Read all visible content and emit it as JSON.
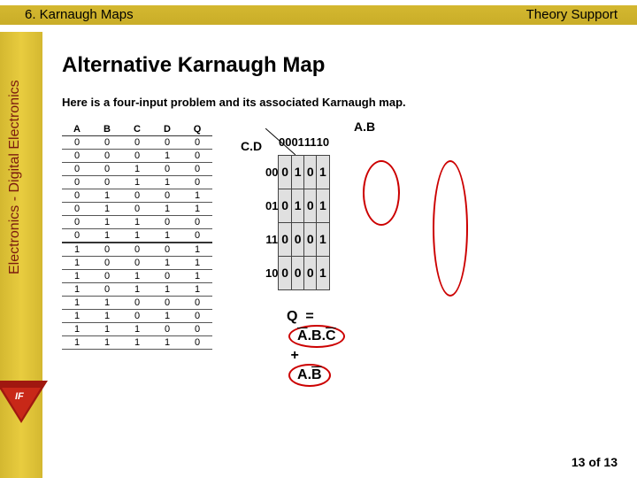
{
  "header": {
    "left": "6. Karnaugh Maps",
    "right": "Theory Support"
  },
  "sidebar": {
    "vertical_label": "Electronics - Digital Electronics",
    "badge": "IF"
  },
  "title": "Alternative Karnaugh Map",
  "intro": "Here is a four-input problem and its associated Karnaugh map.",
  "truth_table": {
    "headers": [
      "A",
      "B",
      "C",
      "D",
      "Q"
    ],
    "rows": [
      [
        "0",
        "0",
        "0",
        "0",
        "0"
      ],
      [
        "0",
        "0",
        "0",
        "1",
        "0"
      ],
      [
        "0",
        "0",
        "1",
        "0",
        "0"
      ],
      [
        "0",
        "0",
        "1",
        "1",
        "0"
      ],
      [
        "0",
        "1",
        "0",
        "0",
        "1"
      ],
      [
        "0",
        "1",
        "0",
        "1",
        "1"
      ],
      [
        "0",
        "1",
        "1",
        "0",
        "0"
      ],
      [
        "0",
        "1",
        "1",
        "1",
        "0"
      ],
      [
        "1",
        "0",
        "0",
        "0",
        "1"
      ],
      [
        "1",
        "0",
        "0",
        "1",
        "1"
      ],
      [
        "1",
        "0",
        "1",
        "0",
        "1"
      ],
      [
        "1",
        "0",
        "1",
        "1",
        "1"
      ],
      [
        "1",
        "1",
        "0",
        "0",
        "0"
      ],
      [
        "1",
        "1",
        "0",
        "1",
        "0"
      ],
      [
        "1",
        "1",
        "1",
        "0",
        "0"
      ],
      [
        "1",
        "1",
        "1",
        "1",
        "0"
      ]
    ]
  },
  "kmap": {
    "col_label": "A.B",
    "row_label": "C.D",
    "cols": [
      "00",
      "01",
      "11",
      "10"
    ],
    "rows": [
      "00",
      "01",
      "11",
      "10"
    ],
    "cells": [
      [
        "0",
        "1",
        "0",
        "1"
      ],
      [
        "0",
        "1",
        "0",
        "1"
      ],
      [
        "0",
        "0",
        "0",
        "1"
      ],
      [
        "0",
        "0",
        "0",
        "1"
      ]
    ]
  },
  "equation": {
    "Q": "Q",
    "eq": "=",
    "term1_a": "A",
    "term1_b": "B",
    "term1_c": "C",
    "plus": "+",
    "term2_a": "A",
    "term2_b": "B"
  },
  "pager": "13 of 13"
}
